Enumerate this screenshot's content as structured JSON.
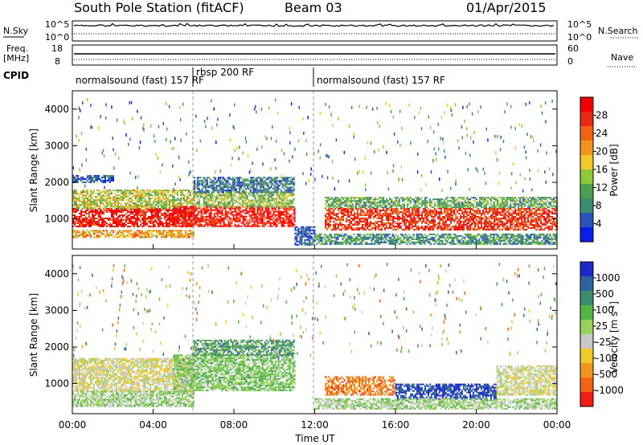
{
  "header": {
    "title": "South Pole Station (fitACF)",
    "beam": "Beam 03",
    "date": "01/Apr/2015"
  },
  "noise_panel": {
    "left_label": "N.Sky",
    "right_label": "N.Search",
    "left_ticks": [
      "10^5",
      "10^0"
    ],
    "right_ticks": [
      "10^5",
      "10^0"
    ]
  },
  "freq_panel": {
    "left_label_1": "Freq.",
    "left_label_2": "[MHz]",
    "right_label": "Nave",
    "left_ticks": [
      "18",
      "8"
    ],
    "right_ticks": [
      "60",
      "0"
    ]
  },
  "cpid": {
    "label": "CPID",
    "segments": [
      {
        "name": "normalsound (fast) 157 RF",
        "start_hour": 0,
        "end_hour": 6
      },
      {
        "name": "rbsp 200 RF",
        "start_hour": 6,
        "end_hour": 12
      },
      {
        "name": "normalsound (fast) 157 RF",
        "start_hour": 12,
        "end_hour": 24
      }
    ]
  },
  "chart_data": [
    {
      "type": "heatmap",
      "name": "power",
      "ylabel": "Slant Range [km]",
      "ylim": [
        180,
        4500
      ],
      "yticks": [
        "1000",
        "2000",
        "3000",
        "4000"
      ],
      "xlim": [
        0,
        24
      ],
      "xticks": [
        "00:00",
        "04:00",
        "08:00",
        "12:00",
        "16:00",
        "20:00",
        "00:00"
      ],
      "colorbar": {
        "label": "Power [dB]",
        "ticks": [
          "4",
          "8",
          "12",
          "16",
          "20",
          "24",
          "28"
        ],
        "colors": [
          "#0a1ee6",
          "#2a55b8",
          "#3c8c6e",
          "#4aa050",
          "#8cc83c",
          "#f0c828",
          "#f0961e",
          "#f06414",
          "#e62814",
          "#f00000"
        ]
      },
      "bands": [
        {
          "x0": 0,
          "x1": 6,
          "r0": 800,
          "r1": 1300,
          "level": 28
        },
        {
          "x0": 0,
          "x1": 6,
          "r0": 1300,
          "r1": 1800,
          "level": 16
        },
        {
          "x0": 0,
          "x1": 6,
          "r0": 500,
          "r1": 700,
          "level": 20
        },
        {
          "x0": 0,
          "x1": 2,
          "r0": 2000,
          "r1": 2200,
          "level": 6
        },
        {
          "x0": 5,
          "x1": 11,
          "r0": 800,
          "r1": 1350,
          "level": 28
        },
        {
          "x0": 6,
          "x1": 11,
          "r0": 1350,
          "r1": 1750,
          "level": 14
        },
        {
          "x0": 6,
          "x1": 11,
          "r0": 1750,
          "r1": 2150,
          "level": 8
        },
        {
          "x0": 11,
          "x1": 12,
          "r0": 300,
          "r1": 800,
          "level": 6
        },
        {
          "x0": 12.5,
          "x1": 24,
          "r0": 700,
          "r1": 1300,
          "level": 26
        },
        {
          "x0": 12.5,
          "x1": 24,
          "r0": 1300,
          "r1": 1600,
          "level": 12
        },
        {
          "x0": 12,
          "x1": 24,
          "r0": 300,
          "r1": 600,
          "level": 10
        }
      ]
    },
    {
      "type": "heatmap",
      "name": "velocity",
      "ylabel": "Slant Range [km]",
      "ylim": [
        180,
        4500
      ],
      "yticks": [
        "1000",
        "2000",
        "3000",
        "4000"
      ],
      "xlim": [
        0,
        24
      ],
      "xticks": [
        "00:00",
        "04:00",
        "08:00",
        "12:00",
        "16:00",
        "20:00",
        "00:00"
      ],
      "xlabel": "Time UT",
      "colorbar": {
        "label": "Velocity [m s^-1]",
        "ticks": [
          "1000",
          "500",
          "100",
          "25",
          "-25",
          "-100",
          "-500",
          "-1000"
        ],
        "colors": [
          "#1e28c8",
          "#2d64a0",
          "#3c8c6e",
          "#55b446",
          "#96d25a",
          "#c8c8c8",
          "#f0c828",
          "#f0961e",
          "#f06414",
          "#f01e14"
        ]
      },
      "bands": [
        {
          "x0": 0,
          "x1": 6,
          "r0": 800,
          "r1": 1700,
          "level": -150
        },
        {
          "x0": 0,
          "x1": 6,
          "r0": 400,
          "r1": 800,
          "level": 80
        },
        {
          "x0": 5,
          "x1": 11,
          "r0": 800,
          "r1": 1800,
          "level": 200
        },
        {
          "x0": 6,
          "x1": 11,
          "r0": 1800,
          "r1": 2200,
          "level": 400
        },
        {
          "x0": 12.5,
          "x1": 16,
          "r0": 700,
          "r1": 1200,
          "level": -600
        },
        {
          "x0": 16,
          "x1": 21,
          "r0": 600,
          "r1": 1000,
          "level": 800
        },
        {
          "x0": 21,
          "x1": 24,
          "r0": 700,
          "r1": 1500,
          "level": -100
        },
        {
          "x0": 12,
          "x1": 24,
          "r0": 300,
          "r1": 600,
          "level": 60
        }
      ]
    }
  ]
}
